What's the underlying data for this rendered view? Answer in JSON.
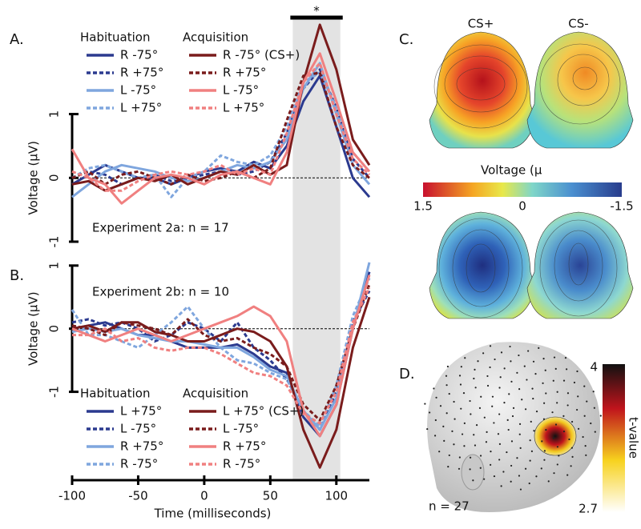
{
  "chart_data": [
    {
      "type": "line",
      "panel_label": "A.",
      "annotation": "Experiment 2a: n = 17",
      "y_label": "Voltage (μV)",
      "significance": "*",
      "shaded_range": [
        67,
        103
      ],
      "x": [
        -100,
        -87.5,
        -75,
        -62.5,
        -50,
        -37.5,
        -25,
        -12.5,
        0,
        12.5,
        25,
        37.5,
        50,
        62.5,
        75,
        87.5,
        100,
        112.5,
        125
      ],
      "xlim": [
        -100,
        125
      ],
      "ylim": [
        -1,
        2.6
      ],
      "yticks": [
        -1,
        0,
        1
      ],
      "legend_titles": [
        "Habituation",
        "Acquisition"
      ],
      "series": [
        {
          "name": "R -75°",
          "color": "#2b3a8f",
          "line_style": "solid",
          "values": [
            -0.1,
            0.05,
            0.2,
            0.1,
            0.0,
            0.0,
            -0.1,
            0.0,
            0.1,
            0.15,
            0.1,
            0.25,
            0.15,
            0.5,
            1.2,
            1.6,
            0.8,
            0.0,
            -0.3
          ]
        },
        {
          "name": "R +75°",
          "color": "#2b3a8f",
          "line_style": "dotted",
          "values": [
            0.0,
            0.1,
            0.05,
            -0.1,
            0.0,
            0.05,
            -0.05,
            0.0,
            0.05,
            0.1,
            0.05,
            0.1,
            0.25,
            0.7,
            1.4,
            1.7,
            1.1,
            0.3,
            0.0
          ]
        },
        {
          "name": "L -75°",
          "color": "#7fa6de",
          "line_style": "solid",
          "values": [
            -0.3,
            -0.1,
            0.1,
            0.2,
            0.15,
            0.1,
            0.0,
            -0.05,
            0.0,
            0.1,
            0.2,
            0.15,
            0.25,
            0.6,
            1.4,
            1.8,
            1.0,
            0.2,
            -0.1
          ]
        },
        {
          "name": "L +75°",
          "color": "#7fa6de",
          "line_style": "dotted",
          "values": [
            0.0,
            0.15,
            0.2,
            0.1,
            0.0,
            0.05,
            -0.3,
            0.0,
            0.1,
            0.35,
            0.25,
            0.2,
            0.35,
            0.8,
            1.5,
            1.65,
            1.1,
            0.4,
            0.1
          ]
        },
        {
          "name": "R -75° (CS+)",
          "color": "#7a1c1c",
          "line_style": "solid",
          "values": [
            -0.1,
            -0.05,
            -0.2,
            -0.1,
            0.0,
            -0.05,
            0.05,
            -0.1,
            0.0,
            0.1,
            0.05,
            0.2,
            0.05,
            0.2,
            1.5,
            2.4,
            1.7,
            0.6,
            0.2
          ]
        },
        {
          "name": "R +75°",
          "color": "#7a1c1c",
          "line_style": "dotted",
          "values": [
            0.0,
            0.1,
            -0.1,
            0.05,
            0.1,
            0.0,
            -0.1,
            0.05,
            -0.05,
            0.0,
            0.1,
            0.0,
            0.15,
            0.9,
            1.6,
            1.65,
            0.8,
            0.2,
            0.0
          ]
        },
        {
          "name": "L -75°",
          "color": "#f08080",
          "line_style": "solid",
          "values": [
            0.45,
            0.0,
            -0.1,
            -0.4,
            -0.2,
            0.0,
            0.05,
            0.0,
            -0.1,
            0.05,
            0.1,
            0.0,
            -0.1,
            0.4,
            1.5,
            1.95,
            1.2,
            0.4,
            0.1
          ]
        },
        {
          "name": "L +75°",
          "color": "#f08080",
          "line_style": "dotted",
          "values": [
            0.1,
            0.0,
            -0.2,
            -0.2,
            -0.05,
            0.05,
            0.1,
            0.05,
            0.1,
            0.2,
            0.05,
            0.15,
            0.05,
            0.7,
            1.5,
            1.8,
            1.0,
            0.3,
            0.05
          ]
        }
      ]
    },
    {
      "type": "line",
      "panel_label": "B.",
      "annotation": "Experiment 2b: n = 10",
      "y_label": "Voltage (μV)",
      "x_label": "Time (milliseconds)",
      "shaded_range": [
        67,
        103
      ],
      "x": [
        -100,
        -87.5,
        -75,
        -62.5,
        -50,
        -37.5,
        -25,
        -12.5,
        0,
        12.5,
        25,
        37.5,
        50,
        62.5,
        75,
        87.5,
        100,
        112.5,
        125
      ],
      "xlim": [
        -100,
        125
      ],
      "xticks": [
        -100,
        -50,
        0,
        50,
        100
      ],
      "ylim": [
        -2.4,
        1.15
      ],
      "yticks": [
        -1,
        0,
        1
      ],
      "legend_titles": [
        "Habituation",
        "Acquisition"
      ],
      "series": [
        {
          "name": "L +75°",
          "color": "#2b3a8f",
          "line_style": "solid",
          "values": [
            0.0,
            0.05,
            0.1,
            0.0,
            -0.1,
            -0.1,
            -0.2,
            -0.3,
            -0.3,
            -0.3,
            -0.25,
            -0.4,
            -0.6,
            -0.7,
            -1.4,
            -1.7,
            -1.2,
            0.0,
            0.9
          ]
        },
        {
          "name": "L -75°",
          "color": "#2b3a8f",
          "line_style": "dotted",
          "values": [
            0.1,
            0.15,
            0.05,
            0.1,
            0.0,
            -0.2,
            -0.1,
            0.1,
            0.0,
            -0.2,
            0.1,
            -0.3,
            -0.5,
            -0.8,
            -1.3,
            -1.6,
            -1.0,
            0.1,
            0.6
          ]
        },
        {
          "name": "R +75°",
          "color": "#7fa6de",
          "line_style": "solid",
          "values": [
            -0.05,
            0.0,
            -0.05,
            0.0,
            -0.1,
            -0.15,
            -0.2,
            -0.2,
            -0.25,
            -0.3,
            -0.3,
            -0.45,
            -0.65,
            -0.75,
            -1.3,
            -1.6,
            -1.1,
            0.0,
            1.05
          ]
        },
        {
          "name": "R -75°",
          "color": "#7fa6de",
          "line_style": "dotted",
          "values": [
            0.3,
            -0.1,
            -0.1,
            -0.2,
            -0.3,
            -0.1,
            0.1,
            0.35,
            0.0,
            -0.3,
            -0.5,
            -0.55,
            -0.7,
            -0.8,
            -1.3,
            -1.55,
            -0.9,
            0.2,
            0.8
          ]
        },
        {
          "name": "L +75° (CS+)",
          "color": "#7a1c1c",
          "line_style": "solid",
          "values": [
            0.0,
            0.05,
            -0.05,
            0.1,
            0.1,
            -0.05,
            -0.1,
            -0.2,
            -0.2,
            -0.1,
            0.0,
            -0.05,
            -0.2,
            -0.6,
            -1.6,
            -2.2,
            -1.6,
            -0.3,
            0.5
          ]
        },
        {
          "name": "L -75°",
          "color": "#7a1c1c",
          "line_style": "dotted",
          "values": [
            0.05,
            0.0,
            -0.1,
            0.1,
            0.05,
            0.0,
            -0.1,
            0.15,
            -0.1,
            -0.2,
            -0.15,
            -0.3,
            -0.4,
            -0.6,
            -1.2,
            -1.45,
            -0.9,
            0.0,
            0.7
          ]
        },
        {
          "name": "R +75°",
          "color": "#f08080",
          "line_style": "solid",
          "values": [
            0.0,
            -0.1,
            -0.2,
            -0.1,
            0.0,
            -0.1,
            -0.2,
            -0.1,
            0.0,
            0.1,
            0.2,
            0.35,
            0.2,
            -0.2,
            -1.3,
            -1.7,
            -1.2,
            0.0,
            0.85
          ]
        },
        {
          "name": "R -75°",
          "color": "#f08080",
          "line_style": "dotted",
          "values": [
            -0.1,
            -0.1,
            0.0,
            -0.2,
            -0.15,
            -0.3,
            -0.35,
            -0.3,
            -0.3,
            -0.4,
            -0.55,
            -0.7,
            -0.75,
            -0.9,
            -1.35,
            -1.5,
            -1.0,
            0.1,
            0.65
          ]
        }
      ]
    }
  ],
  "topomap": {
    "panel_label": "C.",
    "columns": [
      "CS+",
      "CS-"
    ],
    "colorbar": {
      "label": "Voltage (μ",
      "range": [
        1.5,
        -1.5
      ],
      "ticks": [
        1.5,
        0,
        -1.5
      ]
    }
  },
  "source_map": {
    "panel_label": "D.",
    "note": "n = 27",
    "colorbar": {
      "label": "t-value",
      "range": [
        2.7,
        4
      ],
      "ticks": [
        4,
        2.7
      ]
    }
  }
}
